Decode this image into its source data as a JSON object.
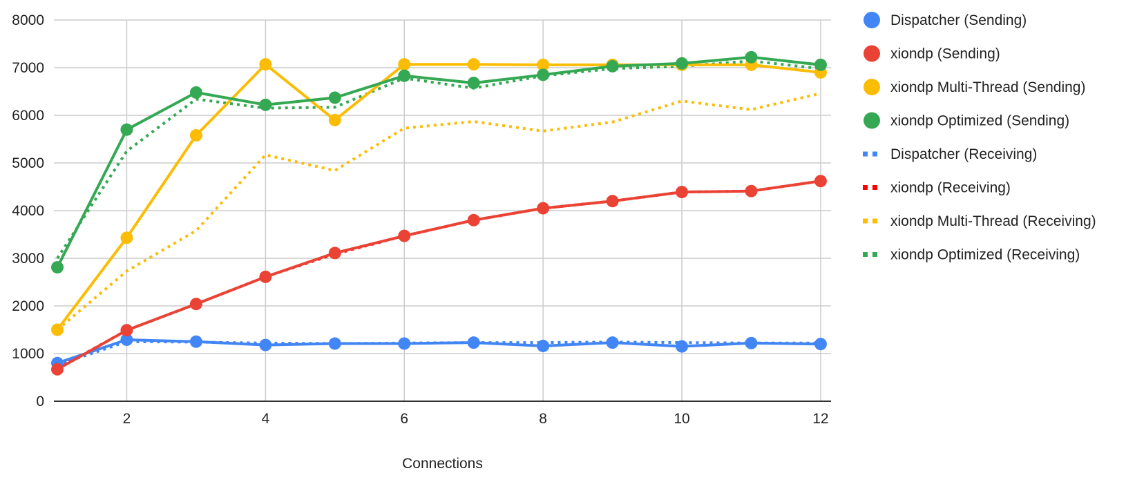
{
  "chart_data": {
    "type": "line",
    "title": "",
    "xlabel": "Connections",
    "ylabel": "",
    "x": [
      1,
      2,
      3,
      4,
      5,
      6,
      7,
      8,
      9,
      10,
      11,
      12
    ],
    "xlim": [
      0.95,
      12.15
    ],
    "ylim": [
      0,
      8000
    ],
    "x_ticks": [
      2,
      4,
      6,
      8,
      10,
      12
    ],
    "y_ticks": [
      0,
      1000,
      2000,
      3000,
      4000,
      5000,
      6000,
      7000,
      8000
    ],
    "grid": true,
    "legend_position": "right",
    "series": [
      {
        "name": "Dispatcher (Sending)",
        "color": "#4285F4",
        "style": "solid",
        "markers": true,
        "values": [
          800,
          1290,
          1250,
          1180,
          1210,
          1210,
          1230,
          1160,
          1230,
          1150,
          1220,
          1200
        ]
      },
      {
        "name": "xiondp (Sending)",
        "color": "#EA4335",
        "style": "solid",
        "markers": true,
        "values": [
          670,
          1490,
          2040,
          2610,
          3110,
          3470,
          3800,
          4050,
          4200,
          4390,
          4410,
          4620
        ]
      },
      {
        "name": "xiondp Multi-Thread (Sending)",
        "color": "#FBBC04",
        "style": "solid",
        "markers": true,
        "values": [
          1500,
          3430,
          5580,
          7070,
          5900,
          7070,
          7070,
          7060,
          7060,
          7060,
          7060,
          6900
        ]
      },
      {
        "name": "xiondp Optimized (Sending)",
        "color": "#34A853",
        "style": "solid",
        "markers": true,
        "values": [
          2810,
          5700,
          6480,
          6220,
          6370,
          6830,
          6680,
          6850,
          7030,
          7090,
          7220,
          7060
        ]
      },
      {
        "name": "Dispatcher (Receiving)",
        "color": "#4285F4",
        "style": "dotted",
        "markers": false,
        "values": [
          760,
          1250,
          1240,
          1220,
          1210,
          1220,
          1230,
          1230,
          1240,
          1230,
          1220,
          1220
        ]
      },
      {
        "name": "xiondp (Receiving)",
        "color": "#FF0000",
        "style": "dotted",
        "markers": false,
        "values": [
          680,
          1490,
          2040,
          2610,
          3090,
          3470,
          3800,
          4050,
          4200,
          4390,
          4410,
          4620
        ]
      },
      {
        "name": "xiondp Multi-Thread  (Receiving)",
        "color": "#FBBC04",
        "style": "dotted",
        "markers": false,
        "values": [
          1500,
          2730,
          3580,
          5170,
          4840,
          5730,
          5870,
          5670,
          5860,
          6300,
          6120,
          6460
        ]
      },
      {
        "name": "xiondp Optimized  (Receiving)",
        "color": "#34A853",
        "style": "dotted",
        "markers": false,
        "values": [
          3000,
          5250,
          6340,
          6150,
          6170,
          6780,
          6570,
          6830,
          6980,
          7030,
          7140,
          6980
        ]
      }
    ]
  }
}
